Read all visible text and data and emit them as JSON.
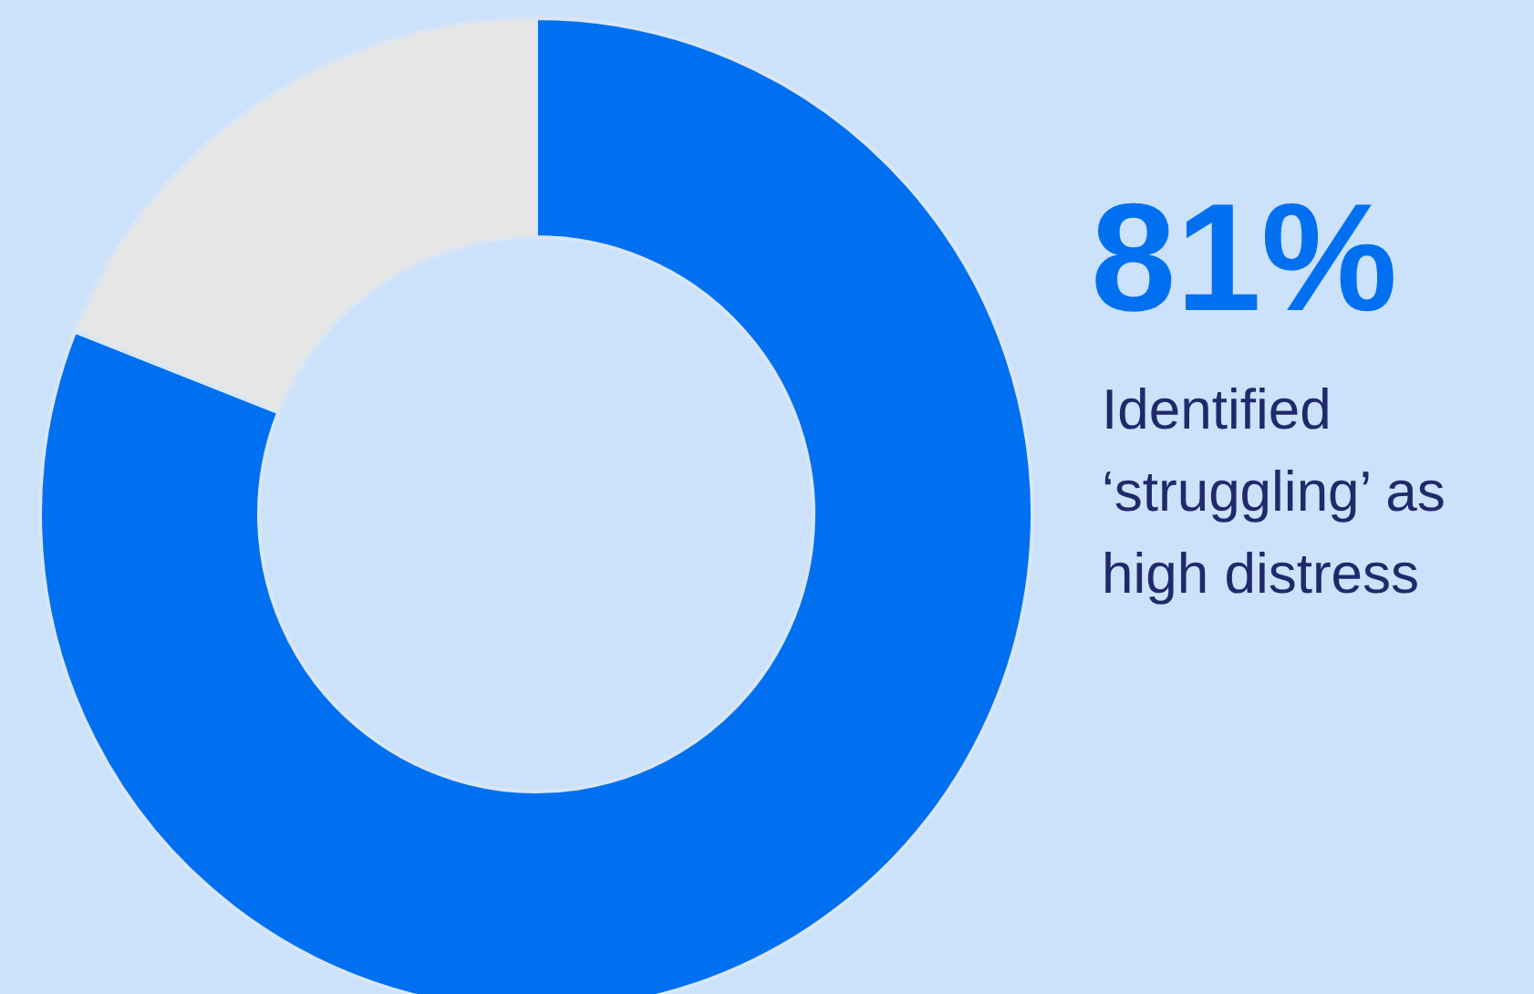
{
  "chart_data": {
    "type": "donut",
    "categories": [
      null,
      null
    ],
    "values": [
      81,
      19
    ],
    "colors": [
      "#0070f0",
      "#e6e6e6"
    ],
    "value_labels": [
      "81%",
      null
    ],
    "annotations": [
      "Identified\n‘struggling’ as\nhigh distress"
    ]
  }
}
